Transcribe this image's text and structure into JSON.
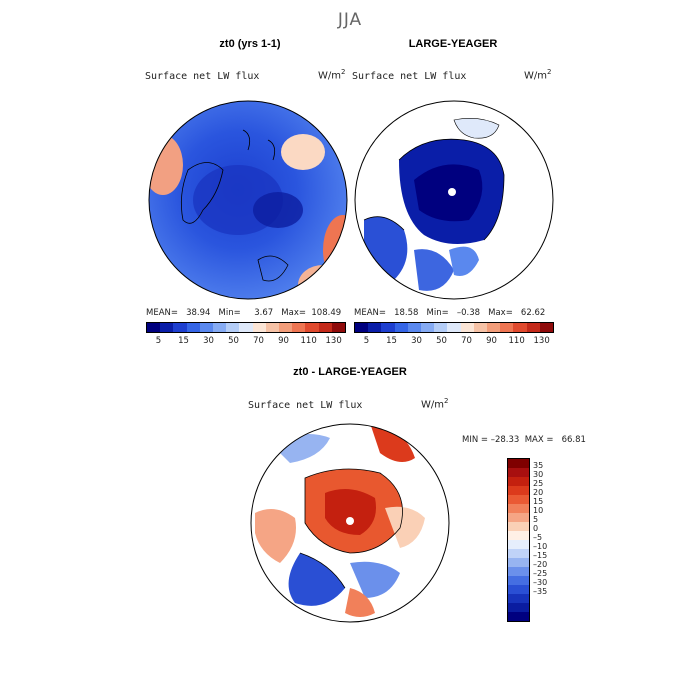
{
  "figure": {
    "season": "JJA"
  },
  "panels": [
    {
      "id": "panel-a",
      "title": "zt0 (yrs 1-1)",
      "variable": "Surface net LW flux",
      "units": "W/m",
      "units_exp": "2",
      "stats": "MEAN=   38.94   Min=     3.67   Max=  108.49"
    },
    {
      "id": "panel-b",
      "title": "LARGE-YEAGER",
      "variable": "Surface net LW flux",
      "units": "W/m",
      "units_exp": "2",
      "stats": "MEAN=   18.58   Min=   –0.38   Max=   62.62"
    },
    {
      "id": "panel-c",
      "title": "zt0 - LARGE-YEAGER",
      "variable": "Surface net LW flux",
      "units": "W/m",
      "units_exp": "2",
      "stats": "MIN = –28.33  MAX =   66.81"
    }
  ],
  "colorbars": {
    "absolute": {
      "labels": [
        "5",
        "15",
        "30",
        "50",
        "70",
        "90",
        "110",
        "130"
      ],
      "colors": [
        "#00007f",
        "#0a1ea8",
        "#1e3fcf",
        "#3565e6",
        "#5a88ee",
        "#86abf3",
        "#b4cdf7",
        "#dfe9fa",
        "#fbe5d6",
        "#f6c2a6",
        "#f29d7a",
        "#ee7552",
        "#e04a2e",
        "#c42a1a",
        "#8f0b0b"
      ]
    },
    "difference": {
      "labels": [
        "35",
        "30",
        "25",
        "20",
        "15",
        "10",
        "5",
        "0",
        "–5",
        "–10",
        "–15",
        "–20",
        "–25",
        "–30",
        "–35"
      ],
      "colors": [
        "#7f0000",
        "#a80f0f",
        "#c4200f",
        "#dc3a1c",
        "#ea5a34",
        "#f1805a",
        "#f5a585",
        "#fad0b6",
        "#fff0e6",
        "#e6eefc",
        "#c0d3f8",
        "#97b4f1",
        "#6b90eb",
        "#456ee2",
        "#2a4fd4",
        "#1733bb",
        "#0a1ca0",
        "#00007f"
      ]
    }
  },
  "chart_data": [
    {
      "type": "heatmap",
      "title": "zt0 (yrs 1-1)",
      "subtitle": "Surface net LW flux",
      "units": "W/m2",
      "projection": "north polar stereographic",
      "mean": 38.94,
      "min": 3.67,
      "max": 108.49,
      "color_levels": [
        5,
        15,
        30,
        50,
        70,
        90,
        110,
        130
      ]
    },
    {
      "type": "heatmap",
      "title": "LARGE-YEAGER",
      "subtitle": "Surface net LW flux",
      "units": "W/m2",
      "projection": "north polar stereographic",
      "mean": 18.58,
      "min": -0.38,
      "max": 62.62,
      "color_levels": [
        5,
        15,
        30,
        50,
        70,
        90,
        110,
        130
      ]
    },
    {
      "type": "heatmap",
      "title": "zt0 - LARGE-YEAGER",
      "subtitle": "Surface net LW flux",
      "units": "W/m2",
      "projection": "north polar stereographic",
      "min": -28.33,
      "max": 66.81,
      "color_levels": [
        -35,
        -30,
        -25,
        -20,
        -15,
        -10,
        -5,
        0,
        5,
        10,
        15,
        20,
        25,
        30,
        35
      ]
    }
  ]
}
